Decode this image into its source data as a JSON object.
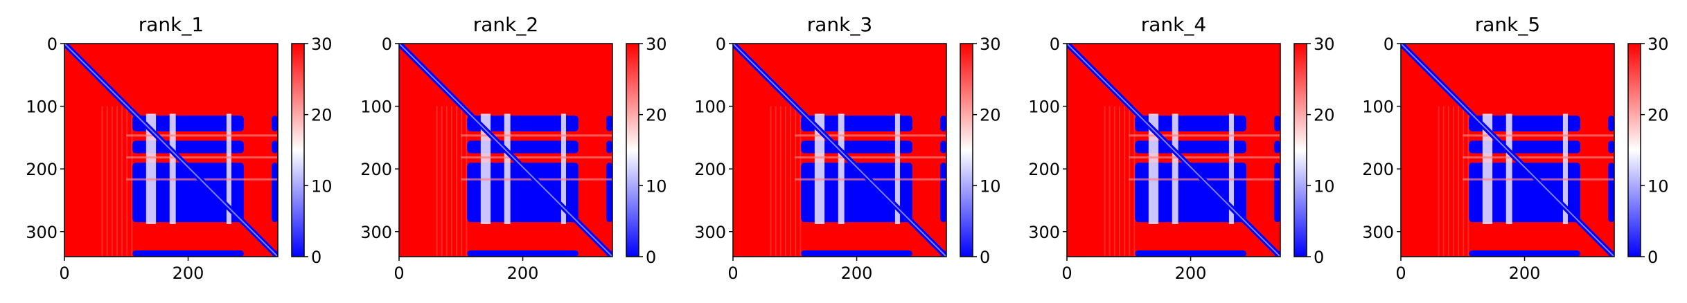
{
  "chart_data": [
    {
      "type": "heatmap",
      "title": "rank_1",
      "x_ticks": [
        0,
        200
      ],
      "y_ticks": [
        0,
        100,
        200,
        300
      ],
      "xlim": [
        0,
        345
      ],
      "ylim": [
        340,
        0
      ],
      "colorbar": {
        "ticks": [
          0,
          10,
          20,
          30
        ],
        "range": [
          0,
          30
        ],
        "colormap": "bwr"
      }
    },
    {
      "type": "heatmap",
      "title": "rank_2",
      "x_ticks": [
        0,
        200
      ],
      "y_ticks": [
        0,
        100,
        200,
        300
      ],
      "xlim": [
        0,
        345
      ],
      "ylim": [
        340,
        0
      ],
      "colorbar": {
        "ticks": [
          0,
          10,
          20,
          30
        ],
        "range": [
          0,
          30
        ],
        "colormap": "bwr"
      }
    },
    {
      "type": "heatmap",
      "title": "rank_3",
      "x_ticks": [
        0,
        200
      ],
      "y_ticks": [
        0,
        100,
        200,
        300
      ],
      "xlim": [
        0,
        345
      ],
      "ylim": [
        340,
        0
      ],
      "colorbar": {
        "ticks": [
          0,
          10,
          20,
          30
        ],
        "range": [
          0,
          30
        ],
        "colormap": "bwr"
      }
    },
    {
      "type": "heatmap",
      "title": "rank_4",
      "x_ticks": [
        0,
        200
      ],
      "y_ticks": [
        0,
        100,
        200,
        300
      ],
      "xlim": [
        0,
        345
      ],
      "ylim": [
        340,
        0
      ],
      "colorbar": {
        "ticks": [
          0,
          10,
          20,
          30
        ],
        "range": [
          0,
          30
        ],
        "colormap": "bwr"
      }
    },
    {
      "type": "heatmap",
      "title": "rank_5",
      "x_ticks": [
        0,
        200
      ],
      "y_ticks": [
        0,
        100,
        200,
        300
      ],
      "xlim": [
        0,
        345
      ],
      "ylim": [
        340,
        0
      ],
      "colorbar": {
        "ticks": [
          0,
          10,
          20,
          30
        ],
        "range": [
          0,
          30
        ],
        "colormap": "bwr"
      }
    }
  ],
  "heatmap_structure": {
    "block_rows": [
      [
        115,
        140
      ],
      [
        155,
        175
      ],
      [
        190,
        285
      ],
      [
        330,
        340
      ]
    ],
    "block_cols": [
      [
        110,
        290
      ],
      [
        335,
        345
      ]
    ],
    "col_gaps": [
      [
        132,
        148
      ],
      [
        170,
        180
      ],
      [
        262,
        270
      ]
    ],
    "red_streak_rows": [
      145,
      180,
      215
    ],
    "diagonal_width": 4
  },
  "colors": {
    "high": "#ff0000",
    "mid": "#ffffff",
    "low": "#0000ff",
    "axis": "#000000"
  }
}
